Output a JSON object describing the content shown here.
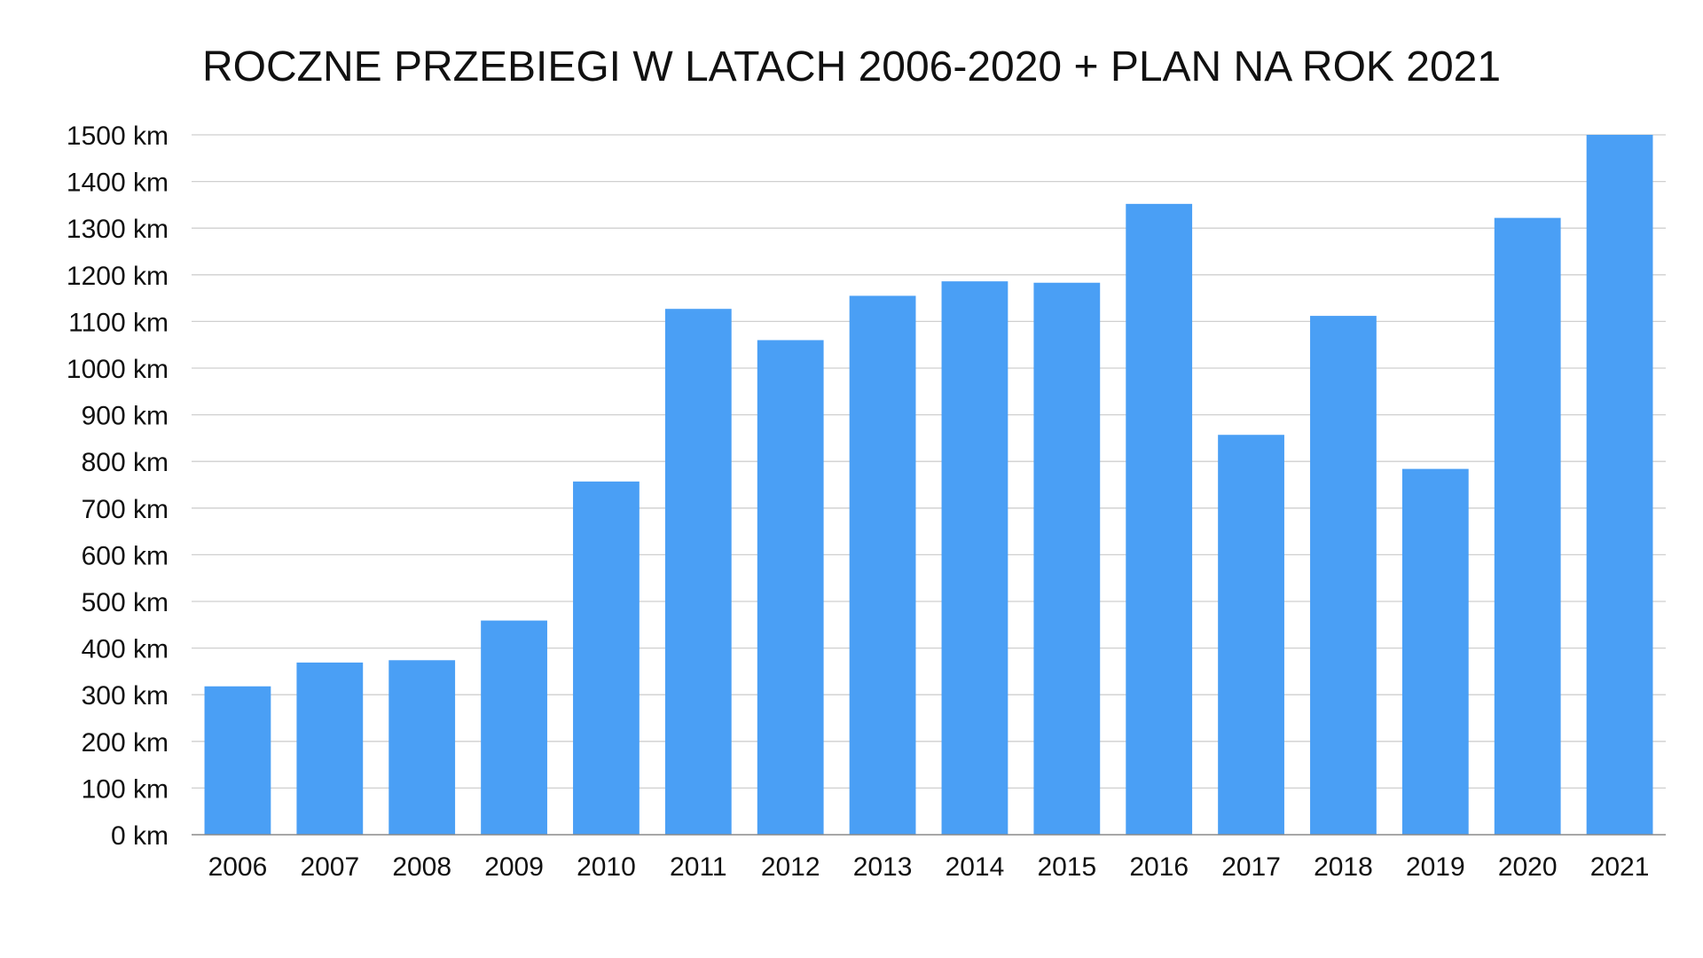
{
  "chart_data": {
    "type": "bar",
    "title": "ROCZNE PRZEBIEGI W LATACH 2006-2020 + PLAN NA ROK 2021",
    "xlabel": "",
    "ylabel": "",
    "categories": [
      "2006",
      "2007",
      "2008",
      "2009",
      "2010",
      "2011",
      "2012",
      "2013",
      "2014",
      "2015",
      "2016",
      "2017",
      "2018",
      "2019",
      "2020",
      "2021"
    ],
    "values": [
      318,
      369,
      374,
      459,
      757,
      1127,
      1060,
      1155,
      1186,
      1183,
      1352,
      857,
      1112,
      784,
      1322,
      1500
    ],
    "ylim": [
      0,
      1500
    ],
    "yticks": [
      0,
      100,
      200,
      300,
      400,
      500,
      600,
      700,
      800,
      900,
      1000,
      1100,
      1200,
      1300,
      1400,
      1500
    ],
    "ytick_suffix": " km",
    "grid": true,
    "legend": "none",
    "bar_color": "#4a9ff5"
  }
}
